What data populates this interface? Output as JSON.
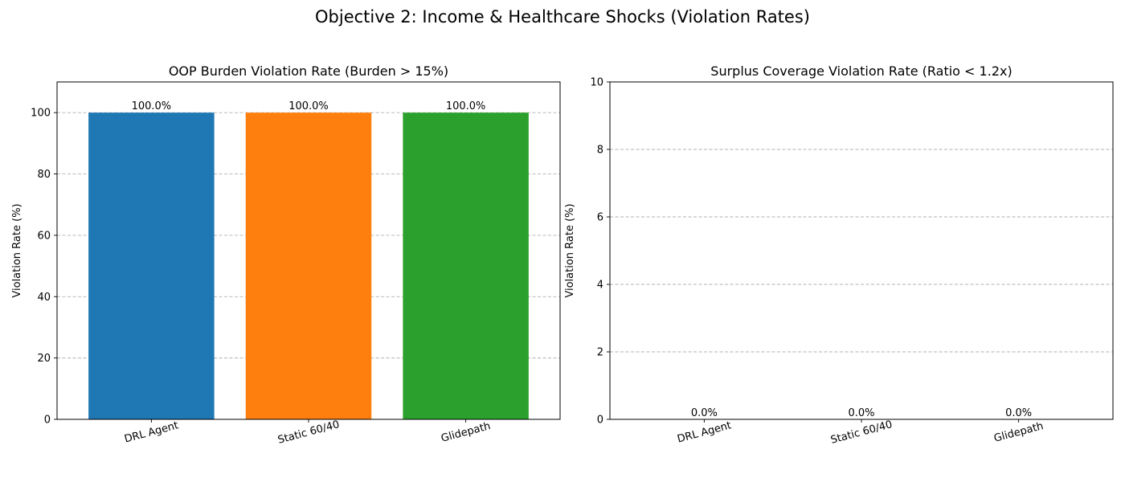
{
  "figure": {
    "title": "Objective 2: Income & Healthcare Shocks (Violation Rates)"
  },
  "colors": {
    "bar_colors": [
      "#1f77b4",
      "#ff7f0e",
      "#2ca02c"
    ],
    "grid": "#b0b0b0",
    "axis": "#000000",
    "background": "#ffffff"
  },
  "chart_data": [
    {
      "type": "bar",
      "title": "OOP Burden Violation Rate (Burden > 15%)",
      "xlabel": "",
      "ylabel": "Violation Rate (%)",
      "categories": [
        "DRL Agent",
        "Static 60/40",
        "Glidepath"
      ],
      "values": [
        100.0,
        100.0,
        100.0
      ],
      "value_labels": [
        "100.0%",
        "100.0%",
        "100.0%"
      ],
      "ylim": [
        0,
        110
      ],
      "yticks": [
        0,
        20,
        40,
        60,
        80,
        100
      ],
      "ytick_labels": [
        "0",
        "20",
        "40",
        "60",
        "80",
        "100"
      ],
      "grid": "y-dashed",
      "tick_label_rotation_deg": 15
    },
    {
      "type": "bar",
      "title": "Surplus Coverage Violation Rate (Ratio < 1.2x)",
      "xlabel": "",
      "ylabel": "Violation Rate (%)",
      "categories": [
        "DRL Agent",
        "Static 60/40",
        "Glidepath"
      ],
      "values": [
        0.0,
        0.0,
        0.0
      ],
      "value_labels": [
        "0.0%",
        "0.0%",
        "0.0%"
      ],
      "ylim": [
        0,
        10
      ],
      "yticks": [
        0,
        2,
        4,
        6,
        8,
        10
      ],
      "ytick_labels": [
        "0",
        "2",
        "4",
        "6",
        "8",
        "10"
      ],
      "grid": "y-dashed",
      "tick_label_rotation_deg": 15
    }
  ]
}
